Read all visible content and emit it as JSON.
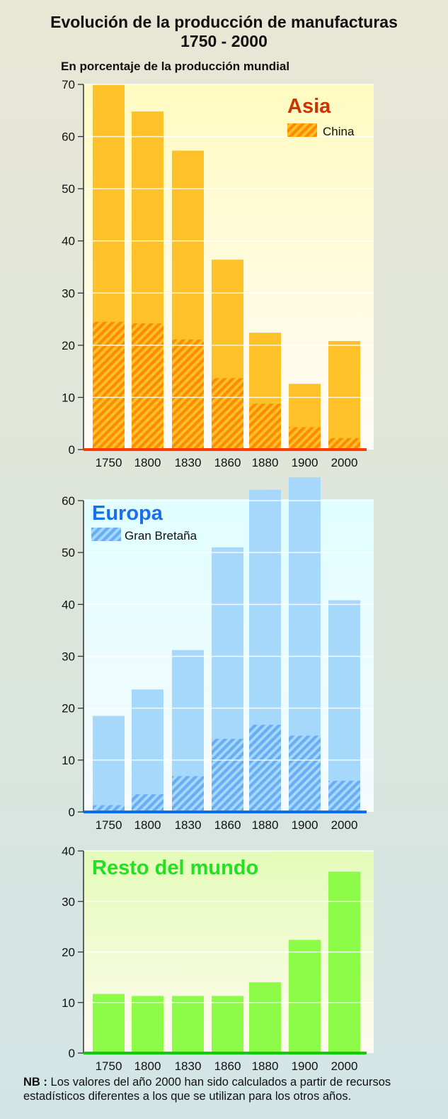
{
  "header": {
    "title_line1": "Evolución de la producción de manufacturas",
    "title_line2": "1750 - 2000",
    "subtitle": "En porcentaje de la producción mundial"
  },
  "footnote": {
    "label": "NB :",
    "text": "Los valores del año 2000 han sido calculados a partir de recursos estadísticos diferentes a los que se utilizan para los otros años."
  },
  "chart_data": [
    {
      "type": "bar",
      "title": "Asia",
      "ylabel": "En porcentaje de la producción mundial",
      "categories": [
        "1750",
        "1800",
        "1830",
        "1860",
        "1880",
        "1900",
        "2000"
      ],
      "ylim": [
        0,
        70
      ],
      "yticks": [
        0,
        10,
        20,
        30,
        40,
        50,
        60,
        70
      ],
      "grid": true,
      "legend": "top-right",
      "colors": {
        "bar": "#fec12a",
        "sub": "#ff8c00",
        "axis": "#ff3c00",
        "title": "#cc3300",
        "bg_top": "#fffbc0",
        "bg_bottom": "#fffbf8"
      },
      "series": [
        {
          "name": "Asia",
          "values": [
            69.9,
            64.8,
            57.3,
            36.4,
            22.4,
            12.6,
            20.8
          ]
        },
        {
          "name": "China",
          "values": [
            24.5,
            24.2,
            21.1,
            13.7,
            8.8,
            4.3,
            2.2
          ],
          "pattern": "hatched"
        }
      ]
    },
    {
      "type": "bar",
      "title": "Europa",
      "categories": [
        "1750",
        "1800",
        "1830",
        "1860",
        "1880",
        "1900",
        "2000"
      ],
      "ylim": [
        0,
        60
      ],
      "yticks": [
        0,
        10,
        20,
        30,
        40,
        50,
        60
      ],
      "grid": true,
      "legend": "top-left",
      "colors": {
        "bar": "#a6d8fb",
        "sub": "#69adf5",
        "axis": "#0a6eea",
        "title": "#1a6ff0",
        "bg_top": "#e0feff",
        "bg_bottom": "#f6fbff"
      },
      "series": [
        {
          "name": "Europa",
          "values": [
            18.5,
            23.6,
            31.2,
            51.0,
            62.1,
            64.5,
            40.8
          ]
        },
        {
          "name": "Gran Bretaña",
          "values": [
            1.3,
            3.4,
            6.9,
            14.1,
            16.8,
            14.7,
            6.0
          ],
          "pattern": "hatched"
        }
      ]
    },
    {
      "type": "bar",
      "title": "Resto del mundo",
      "categories": [
        "1750",
        "1800",
        "1830",
        "1860",
        "1880",
        "1900",
        "2000"
      ],
      "ylim": [
        0,
        40
      ],
      "yticks": [
        0,
        10,
        20,
        30,
        40
      ],
      "grid": true,
      "colors": {
        "bar": "#8cfc48",
        "axis": "#10cc10",
        "title": "#22e022",
        "bg_top": "#e4fbb8",
        "bg_bottom": "#fffbef"
      },
      "series": [
        {
          "name": "Resto del mundo",
          "values": [
            11.7,
            11.3,
            11.3,
            11.3,
            14.0,
            22.4,
            35.9
          ]
        }
      ]
    }
  ]
}
